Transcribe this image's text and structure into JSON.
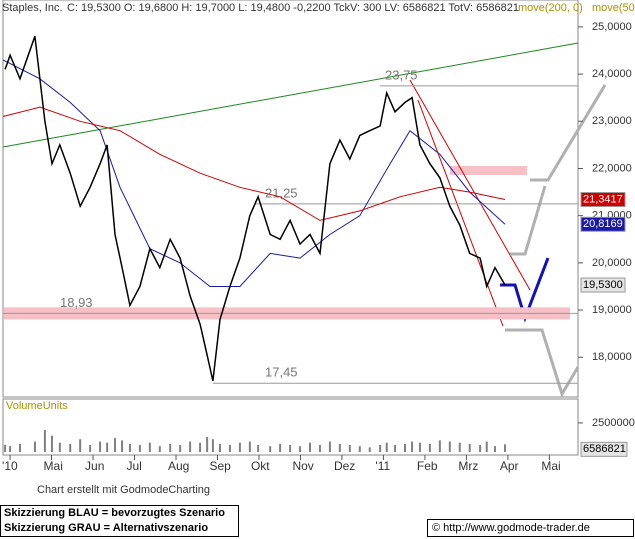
{
  "header": {
    "quote": "C: 19,5300  O: 19,6800  H: 19,7000  L: 19,4800  -0,2200  TckV: 300  LV: 6586821  TotV: 6586821",
    "legend_color": "#b09000"
  },
  "chart_data": [
    {
      "type": "line",
      "xlim": [
        -0.17,
        13.69
      ],
      "ylim": [
        17.2,
        25.4
      ],
      "yticks": [
        {
          "value": 25,
          "label": "25,0000"
        },
        {
          "value": 24,
          "label": "24,0000"
        },
        {
          "value": 23,
          "label": "23,0000"
        },
        {
          "value": 22,
          "label": "22,0000"
        },
        {
          "value": 21,
          "label": "21,0000"
        },
        {
          "value": 20,
          "label": "20,0000"
        },
        {
          "value": 19,
          "label": "19,0000"
        },
        {
          "value": 18,
          "label": "18,0000"
        }
      ],
      "levels": [
        {
          "value": 23.75,
          "label": "23,75"
        },
        {
          "value": 21.25,
          "label": "21,25"
        },
        {
          "value": 18.93,
          "label": "18,93"
        },
        {
          "value": 17.45,
          "label": "17,45"
        }
      ],
      "series": [
        {
          "name": "Staples, Inc.",
          "color": "#000000",
          "tag": "19,5300",
          "tag_color": "#e4e4e4",
          "x": [
            -0.12,
            0,
            0.24,
            0.6,
            0.84,
            1.01,
            1.2,
            1.45,
            1.69,
            1.93,
            2.17,
            2.34,
            2.53,
            2.7,
            2.89,
            3.13,
            3.37,
            3.61,
            3.86,
            4.1,
            4.34,
            4.58,
            4.75,
            4.89,
            5.06,
            5.3,
            5.54,
            5.78,
            5.98,
            6.27,
            6.51,
            6.75,
            6.99,
            7.23,
            7.47,
            7.71,
            7.95,
            8.19,
            8.43,
            8.67,
            8.92,
            9.08,
            9.28,
            9.52,
            9.69,
            9.88,
            10.12,
            10.36,
            10.6,
            10.84,
            11.08,
            11.33,
            11.49,
            11.69,
            11.93
          ],
          "values": [
            24.1,
            24.4,
            23.9,
            24.8,
            23.0,
            22.1,
            22.5,
            21.9,
            21.2,
            21.6,
            22.1,
            22.5,
            20.6,
            19.9,
            19.1,
            19.5,
            20.3,
            19.9,
            20.5,
            20.1,
            19.3,
            18.7,
            18.05,
            17.5,
            18.8,
            19.5,
            20.1,
            21.0,
            21.4,
            20.6,
            20.5,
            20.9,
            20.4,
            20.6,
            20.2,
            22.1,
            22.6,
            22.2,
            22.7,
            22.8,
            22.9,
            23.6,
            23.2,
            23.4,
            23.5,
            22.5,
            22.1,
            21.8,
            21.2,
            20.8,
            20.2,
            20.1,
            19.5,
            19.9,
            19.53
          ]
        },
        {
          "name": "move(200, 0)",
          "color": "#d00000",
          "tag": "21,3417",
          "tag_color": "#d00000",
          "x": [
            -0.17,
            0.72,
            1.69,
            2.65,
            3.61,
            4.58,
            5.54,
            6.51,
            7.47,
            8.43,
            9.4,
            10.36,
            11.08,
            11.93
          ],
          "values": [
            23.1,
            23.3,
            23.0,
            22.8,
            22.3,
            21.9,
            21.6,
            21.4,
            20.9,
            21.1,
            21.4,
            21.6,
            21.5,
            21.3417
          ]
        },
        {
          "name": "move(50,",
          "color": "#1a1aa8",
          "tag": "20,8169",
          "tag_color": "#1a1aa8",
          "x": [
            -0.17,
            0.72,
            1.45,
            2.17,
            2.65,
            3.37,
            4.1,
            4.82,
            5.54,
            6.27,
            6.99,
            7.71,
            8.43,
            9.16,
            9.64,
            10.36,
            11.08,
            11.93
          ],
          "values": [
            24.3,
            23.9,
            23.4,
            22.8,
            21.6,
            20.3,
            20.0,
            19.5,
            19.5,
            20.2,
            20.1,
            20.6,
            21.0,
            22.1,
            22.8,
            22.3,
            21.5,
            20.8169
          ]
        }
      ]
    },
    {
      "type": "bar",
      "title": "VolumeUnits",
      "color": "#808080",
      "xlim": [
        -0.17,
        13.69
      ],
      "ylim": [
        0,
        43000000
      ],
      "yticks": [
        25000000
      ],
      "xticks": [
        {
          "value": 0,
          "label": "'10"
        },
        {
          "value": 1,
          "label": "Mai"
        },
        {
          "value": 2,
          "label": "Jun"
        },
        {
          "value": 3,
          "label": "Jul"
        },
        {
          "value": 4,
          "label": "Aug"
        },
        {
          "value": 5,
          "label": "Sep"
        },
        {
          "value": 6,
          "label": "Okt"
        },
        {
          "value": 7,
          "label": "Nov"
        },
        {
          "value": 8,
          "label": "Dez"
        },
        {
          "value": 9,
          "label": "'11"
        },
        {
          "value": 10,
          "label": "Feb"
        },
        {
          "value": 11,
          "label": "Mrz"
        },
        {
          "value": 12,
          "label": "Apr"
        },
        {
          "value": 13,
          "label": "Mai"
        }
      ],
      "x": [
        -0.12,
        0,
        0.24,
        0.6,
        0.84,
        1.01,
        1.2,
        1.45,
        1.69,
        1.93,
        2.17,
        2.34,
        2.53,
        2.7,
        2.89,
        3.13,
        3.37,
        3.61,
        3.86,
        4.1,
        4.34,
        4.58,
        4.75,
        4.89,
        5.06,
        5.3,
        5.54,
        5.78,
        5.98,
        6.27,
        6.51,
        6.75,
        6.99,
        7.23,
        7.47,
        7.71,
        7.95,
        8.19,
        8.43,
        8.67,
        8.92,
        9.08,
        9.28,
        9.52,
        9.69,
        9.88,
        10.12,
        10.36,
        10.6,
        10.84,
        11.08,
        11.33,
        11.49,
        11.69,
        11.93
      ],
      "values": [
        6000000,
        5000000,
        7000000,
        9000000,
        19000000,
        14000000,
        8000000,
        7000000,
        11000000,
        6000000,
        9000000,
        8000000,
        12000000,
        10000000,
        7000000,
        6000000,
        8000000,
        5000000,
        7000000,
        6000000,
        9000000,
        8000000,
        13000000,
        11000000,
        7000000,
        6000000,
        8000000,
        9000000,
        6000000,
        5000000,
        7000000,
        6000000,
        5000000,
        8000000,
        6000000,
        9000000,
        7000000,
        6000000,
        5000000,
        4000000,
        6000000,
        8000000,
        6000000,
        7000000,
        9000000,
        8000000,
        7000000,
        10000000,
        9000000,
        8000000,
        7000000,
        6000000,
        9000000,
        5000000,
        6586821
      ]
    }
  ],
  "footer": {
    "credit": "Chart erstellt mit GodmodeCharting",
    "blue_note": "Skizzierung BLAU = bevorzugtes Szenario",
    "gray_note": "Skizzierung GRAU = Alternativszenario",
    "site": "© http://www.godmode-trader.de"
  }
}
